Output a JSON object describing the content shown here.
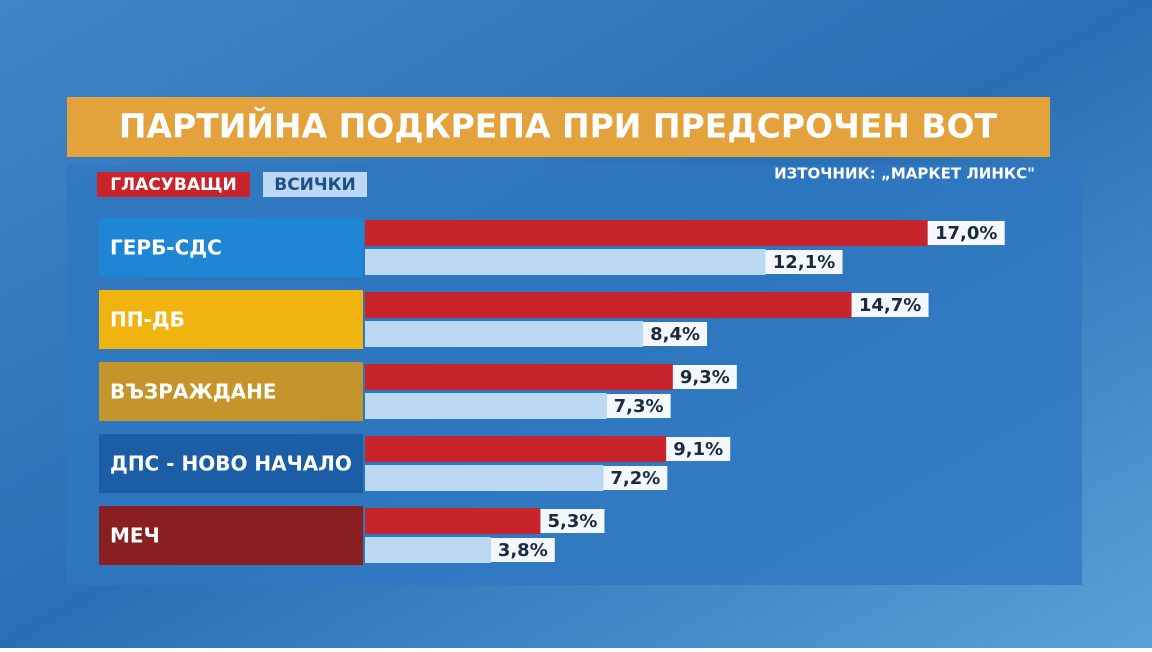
{
  "chart_data": {
    "type": "bar",
    "title": "ПАРТИЙНА ПОДКРЕПА ПРИ ПРЕДСРОЧЕН ВОТ",
    "source": "ИЗТОЧНИК: „МАРКЕТ ЛИНКС\"",
    "categories": [
      "ГЕРБ-СДС",
      "ПП-ДБ",
      "ВЪЗРАЖДАНЕ",
      "ДПС - НОВО НАЧАЛО",
      "МЕЧ"
    ],
    "category_colors": [
      "#1f86d6",
      "#efb40f",
      "#c4952a",
      "#1c5ea6",
      "#8a1f22"
    ],
    "series": [
      {
        "name": "ГЛАСУВАЩИ",
        "color": "#c8242c",
        "values": [
          17.0,
          14.7,
          9.3,
          9.1,
          5.3
        ],
        "value_labels": [
          "17,0%",
          "14,7%",
          "9,3%",
          "9,1%",
          "5,3%"
        ]
      },
      {
        "name": "ВСИЧКИ",
        "color": "#bcd8f2",
        "values": [
          12.1,
          8.4,
          7.3,
          7.2,
          3.8
        ],
        "value_labels": [
          "12,1%",
          "8,4%",
          "7,3%",
          "7,2%",
          "3,8%"
        ]
      }
    ]
  }
}
